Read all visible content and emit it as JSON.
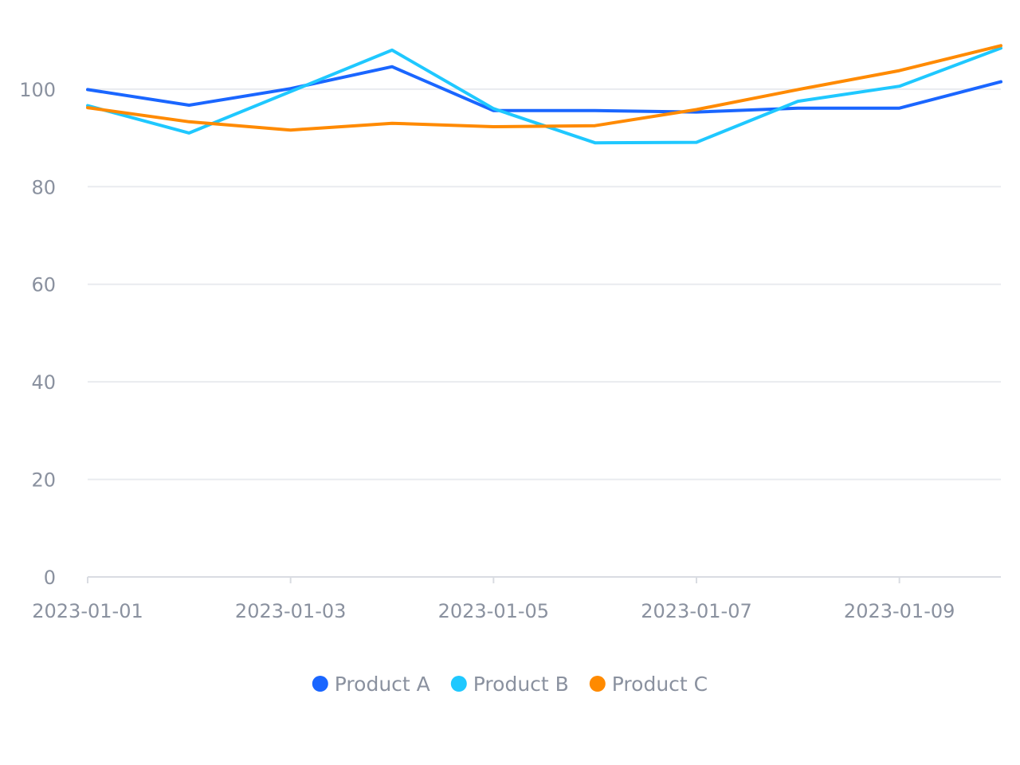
{
  "chart_data": {
    "type": "line",
    "title": "",
    "xlabel": "",
    "ylabel": "",
    "x": [
      "2023-01-01",
      "2023-01-02",
      "2023-01-03",
      "2023-01-04",
      "2023-01-05",
      "2023-01-06",
      "2023-01-07",
      "2023-01-08",
      "2023-01-09",
      "2023-01-10"
    ],
    "x_tick_labels": [
      "2023-01-01",
      "2023-01-03",
      "2023-01-05",
      "2023-01-07",
      "2023-01-09"
    ],
    "y_ticks": [
      0,
      20,
      40,
      60,
      80,
      100
    ],
    "ylim": [
      0,
      115
    ],
    "grid": "horizontal",
    "legend_position": "bottom-center",
    "series": [
      {
        "name": "Product A",
        "color": "#1a66ff",
        "values": [
          99.9,
          96.7,
          100.1,
          104.6,
          95.6,
          95.6,
          95.3,
          96.1,
          96.1,
          101.5
        ]
      },
      {
        "name": "Product B",
        "color": "#1fc8ff",
        "values": [
          96.6,
          91.0,
          99.5,
          108.0,
          96.0,
          89.0,
          89.1,
          97.5,
          100.6,
          108.4
        ]
      },
      {
        "name": "Product C",
        "color": "#ff8a00",
        "values": [
          96.2,
          93.3,
          91.6,
          93.0,
          92.3,
          92.5,
          95.8,
          99.9,
          103.8,
          108.9
        ]
      }
    ]
  }
}
